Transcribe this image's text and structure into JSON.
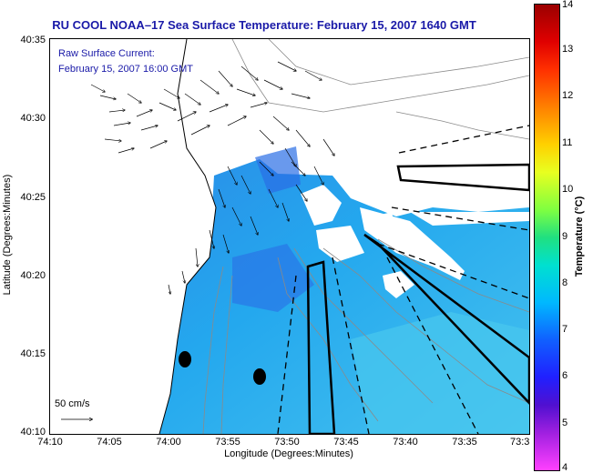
{
  "title": "RU COOL  NOAA–17  Sea Surface Temperature:  February 15, 2007 1640 GMT",
  "overlay": {
    "line1": "Raw Surface Current:",
    "line2": "February 15, 2007 16:00 GMT"
  },
  "scale_label": "50 cm/s",
  "axes": {
    "xlabel": "Longitude (Degrees:Minutes)",
    "ylabel": "Latitude (Degrees:Minutes)",
    "x_ticks": [
      "74:10",
      "74:05",
      "74:00",
      "73:55",
      "73:50",
      "73:45",
      "73:40",
      "73:35",
      "73:3"
    ],
    "y_ticks": [
      "40:35",
      "40:30",
      "40:25",
      "40:20",
      "40:15",
      "40:10"
    ]
  },
  "colorbar": {
    "label": "Temperature (°C)",
    "ticks": [
      "14",
      "13",
      "12",
      "11",
      "10",
      "9",
      "8",
      "7",
      "6",
      "5",
      "4"
    ],
    "range": [
      4,
      14
    ]
  },
  "colors": {
    "title_text": "#1a1aa8",
    "water_base": "#22a8ee",
    "water_light": "#40c8f0",
    "water_dark": "#2a70e8",
    "land": "#ffffff",
    "contour": "#8a8a8a"
  },
  "icons": {
    "buoy": "black-filled-ellipse",
    "scale_arrow": "right-arrow"
  }
}
